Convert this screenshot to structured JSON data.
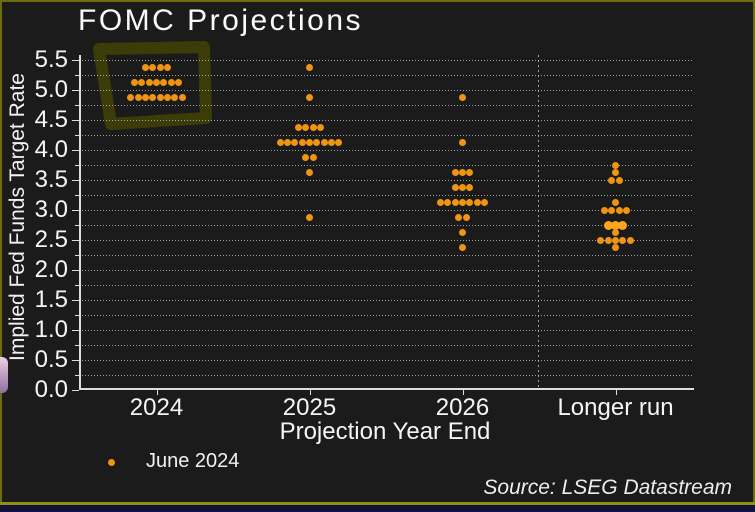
{
  "window": {
    "border_color": "#6c6c10",
    "bottom_line_color": "#8f8f12",
    "bottom_bar_color": "#12123c",
    "background": "#1b1b1b"
  },
  "chart": {
    "title": "FOMC Projections",
    "x_axis": {
      "label": "Projection Year End"
    },
    "y_axis": {
      "label": "Implied Fed Funds Target Rate",
      "ticks": [
        "5.5",
        "5.0",
        "4.5",
        "4.0",
        "3.5",
        "3.0",
        "2.5",
        "2.0",
        "1.5",
        "1.0",
        "0.5",
        "0.0"
      ]
    },
    "legend": {
      "label": "June 2024"
    },
    "source": "Source: LSEG Datastream",
    "colors": {
      "dot": "#ef9513",
      "dot_bright": "#ffa51e",
      "grid": "#cdcdcd",
      "axis": "#dedede",
      "text": "#f5f5f5",
      "highlight": "#3c3c08"
    }
  },
  "chart_data": {
    "type": "scatter",
    "subtype": "fomc-dot-plot",
    "title": "FOMC Projections",
    "xlabel": "Projection Year End",
    "ylabel": "Implied Fed Funds Target Rate",
    "ylim": [
      0.0,
      5.5
    ],
    "ytick_interval": 0.5,
    "grid_interval": 0.25,
    "grid_style": "dotted",
    "legend_position": "bottom-left",
    "series_name": "June 2024",
    "categories": [
      "2024",
      "2025",
      "2026",
      "Longer run"
    ],
    "dots": [
      {
        "category": "2024",
        "groups": [
          {
            "rate": 5.375,
            "count": 4
          },
          {
            "rate": 5.125,
            "count": 7
          },
          {
            "rate": 4.875,
            "count": 8
          }
        ]
      },
      {
        "category": "2025",
        "groups": [
          {
            "rate": 5.375,
            "count": 1
          },
          {
            "rate": 4.875,
            "count": 1
          },
          {
            "rate": 4.375,
            "count": 4
          },
          {
            "rate": 4.125,
            "count": 9
          },
          {
            "rate": 3.875,
            "count": 2
          },
          {
            "rate": 3.625,
            "count": 1
          },
          {
            "rate": 2.875,
            "count": 1
          }
        ]
      },
      {
        "category": "2026",
        "groups": [
          {
            "rate": 4.875,
            "count": 1
          },
          {
            "rate": 4.125,
            "count": 1
          },
          {
            "rate": 3.625,
            "count": 3
          },
          {
            "rate": 3.375,
            "count": 3
          },
          {
            "rate": 3.125,
            "count": 7
          },
          {
            "rate": 2.875,
            "count": 2
          },
          {
            "rate": 2.625,
            "count": 1
          },
          {
            "rate": 2.375,
            "count": 1
          }
        ]
      },
      {
        "category": "Longer run",
        "groups": [
          {
            "rate": 3.75,
            "count": 1
          },
          {
            "rate": 3.625,
            "count": 1
          },
          {
            "rate": 3.5,
            "count": 2
          },
          {
            "rate": 3.125,
            "count": 1
          },
          {
            "rate": 3.0,
            "count": 4
          },
          {
            "rate": 2.75,
            "count": 3,
            "emphasis": true
          },
          {
            "rate": 2.625,
            "count": 1
          },
          {
            "rate": 2.5,
            "count": 5
          },
          {
            "rate": 2.375,
            "count": 1
          }
        ]
      }
    ],
    "annotation": {
      "type": "highlight-box",
      "target": "2024 dot cluster",
      "color": "#3c3c08"
    }
  }
}
